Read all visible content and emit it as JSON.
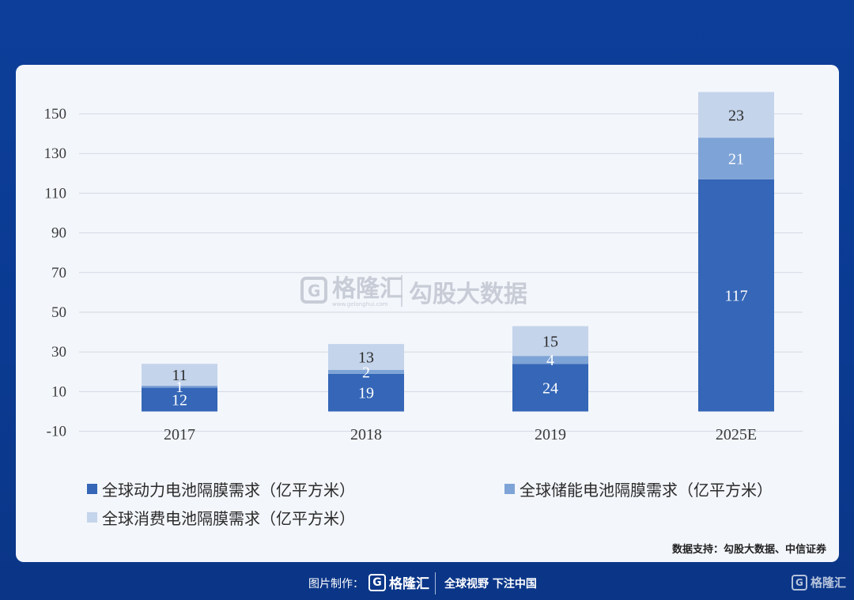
{
  "chart_data": {
    "type": "bar",
    "stacked": true,
    "categories": [
      "2017",
      "2018",
      "2019",
      "2025E"
    ],
    "series": [
      {
        "name": "全球动力电池隔膜需求（亿平方米）",
        "values": [
          12,
          19,
          24,
          117
        ],
        "color": "#3566b7"
      },
      {
        "name": "全球储能电池隔膜需求（亿平方米）",
        "values": [
          1,
          2,
          4,
          21
        ],
        "color": "#7ea3d6"
      },
      {
        "name": "全球消费电池隔膜需求（亿平方米）",
        "values": [
          11,
          13,
          15,
          23
        ],
        "color": "#c4d4eb"
      }
    ],
    "yticks": [
      -10,
      10,
      30,
      50,
      70,
      90,
      110,
      130,
      150
    ],
    "ylim": [
      -10,
      160
    ],
    "grid": true,
    "legend_position": "bottom"
  },
  "watermark": {
    "logo_letter": "G",
    "brand": "格隆汇",
    "domain": "www.gelonghui.com",
    "text": "勾股大数据"
  },
  "source": "数据支持：勾股大数据、中信证券",
  "footer": {
    "label": "图片制作：",
    "logo_letter": "G",
    "brand": "格隆汇",
    "slogan": "全球视野 下注中国",
    "right_brand": "格隆汇"
  }
}
